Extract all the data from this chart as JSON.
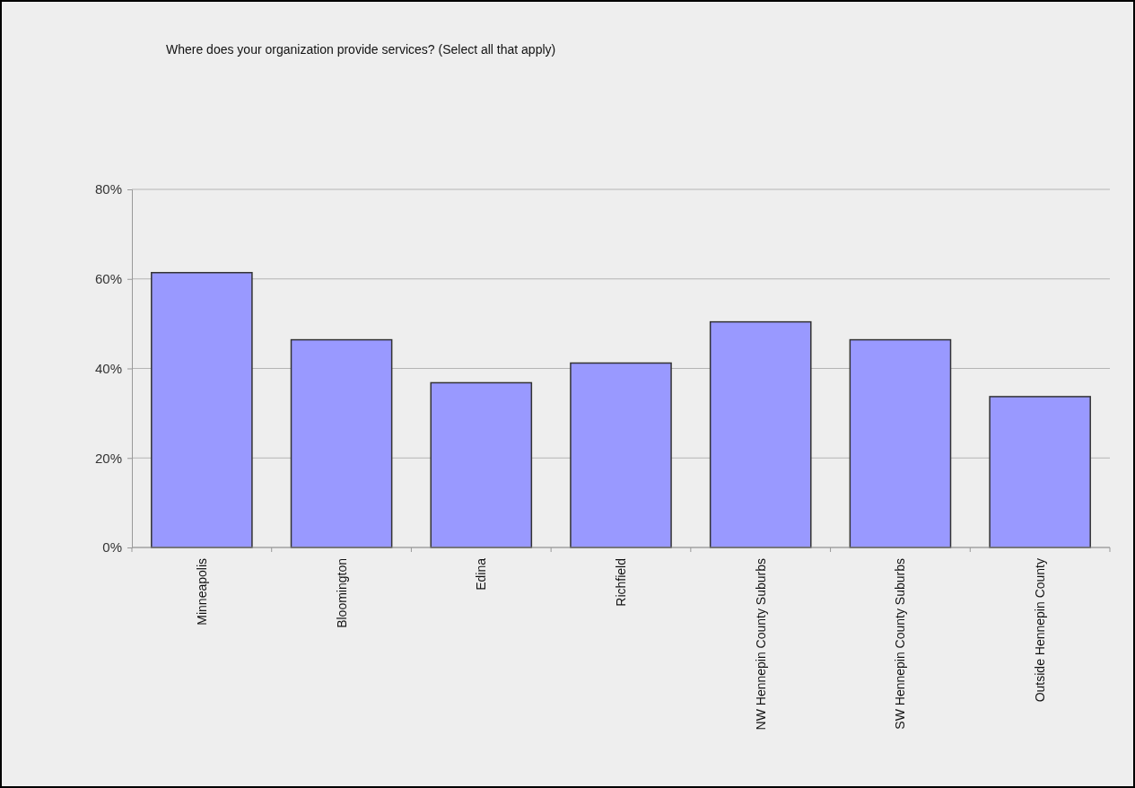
{
  "chart_data": {
    "type": "bar",
    "title": "Where does your organization provide services? (Select all that apply)",
    "categories": [
      "Minneapolis",
      "Bloomington",
      "Edina",
      "Richfield",
      "NW Hennepin County Suburbs",
      "SW Hennepin County Suburbs",
      "Outside Hennepin County"
    ],
    "values": [
      61.4,
      46.4,
      36.8,
      41.2,
      50.4,
      46.4,
      33.7
    ],
    "color": "#9999ff",
    "ylim": [
      0,
      80
    ],
    "yticks": [
      {
        "value": 0,
        "label": "0%"
      },
      {
        "value": 20,
        "label": "20%"
      },
      {
        "value": 40,
        "label": "40%"
      },
      {
        "value": 60,
        "label": "60%"
      },
      {
        "value": 80,
        "label": "80%"
      }
    ],
    "grid": "y"
  }
}
